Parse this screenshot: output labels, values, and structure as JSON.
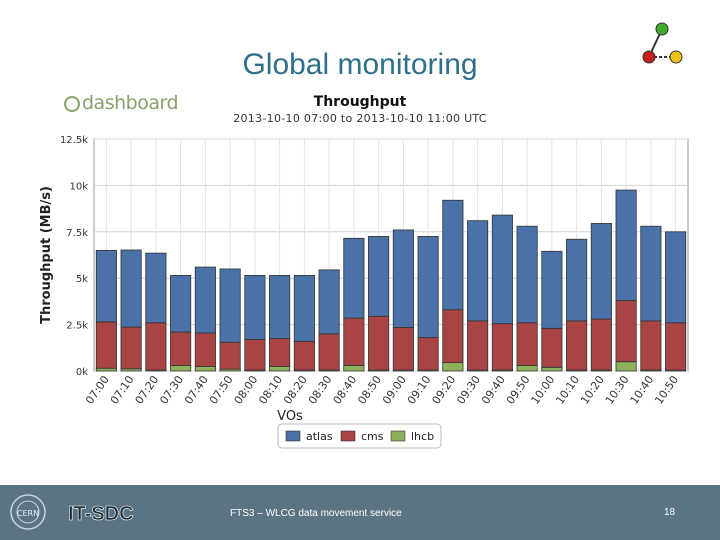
{
  "slide": {
    "title": "Global monitoring",
    "footer_left": "IT-SDC",
    "footer_text": "FTS3 – WLCG data movement service",
    "page_number": "18",
    "logo_text": "dashboard"
  },
  "colors": {
    "atlas": "#4a72a8",
    "cms": "#a84444",
    "lhcb": "#8fb05a",
    "footer_bg": "#5b7483",
    "title": "#2f6f8c"
  },
  "chart_data": {
    "type": "bar",
    "stacked": true,
    "title": "Throughput",
    "subtitle": "2013-10-10 07:00 to 2013-10-10 11:00 UTC",
    "xlabel": "VOs",
    "ylabel": "Throughput (MB/s)",
    "ylim": [
      0,
      12500
    ],
    "yticks": [
      "0k",
      "2.5k",
      "5k",
      "7.5k",
      "10k",
      "12.5k"
    ],
    "ytick_values": [
      0,
      2500,
      5000,
      7500,
      10000,
      12500
    ],
    "grid": true,
    "legend": "bottom",
    "categories": [
      "07:00",
      "07:10",
      "07:20",
      "07:30",
      "07:40",
      "07:50",
      "08:00",
      "08:10",
      "08:20",
      "08:30",
      "08:40",
      "08:50",
      "09:00",
      "09:10",
      "09:20",
      "09:30",
      "09:40",
      "09:50",
      "10:00",
      "10:10",
      "10:20",
      "10:30",
      "10:40",
      "10:50"
    ],
    "series": [
      {
        "name": "atlas",
        "values": [
          3850,
          4150,
          3750,
          3050,
          3550,
          3950,
          3450,
          3400,
          3550,
          3450,
          4300,
          4300,
          5250,
          5450,
          5900,
          5400,
          5850,
          5200,
          4150,
          4400,
          5150,
          5950,
          5100,
          4900
        ]
      },
      {
        "name": "cms",
        "values": [
          2500,
          2250,
          2550,
          1800,
          1800,
          1450,
          1650,
          1500,
          1550,
          1950,
          2550,
          2900,
          2300,
          1750,
          2850,
          2650,
          2500,
          2300,
          2100,
          2650,
          2750,
          3300,
          2650,
          2550
        ]
      },
      {
        "name": "lhcb",
        "values": [
          150,
          120,
          50,
          300,
          250,
          100,
          50,
          250,
          50,
          50,
          300,
          50,
          50,
          50,
          450,
          50,
          50,
          300,
          200,
          50,
          50,
          500,
          50,
          50
        ]
      }
    ]
  }
}
